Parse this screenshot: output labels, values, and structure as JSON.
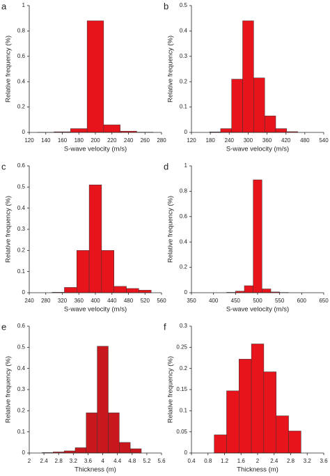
{
  "chart_data": [
    {
      "type": "histogram",
      "title": "a",
      "x_label": "S-wave velocity (m/s)",
      "y_label": "Relative frequency (%)",
      "color": "#e8141c",
      "bins": [
        130,
        150,
        170,
        190,
        210,
        230,
        250,
        270
      ],
      "values": [
        0.001,
        0.005,
        0.03,
        0.88,
        0.06,
        0.01,
        0.002
      ],
      "xlim": [
        120,
        280
      ],
      "xticks": [
        120,
        140,
        160,
        180,
        200,
        220,
        240,
        260,
        280
      ],
      "ylim": [
        0,
        1
      ],
      "yticks": [
        0,
        0.2,
        0.4,
        0.6,
        0.8,
        1
      ]
    },
    {
      "type": "histogram",
      "title": "b",
      "x_label": "S-wave velocity (m/s)",
      "y_label": "Relative frequency (%)",
      "color": "#e8141c",
      "bins": [
        177.5,
        212.5,
        247.5,
        282.5,
        317.5,
        352.5,
        387.5,
        422.5,
        457.5
      ],
      "values": [
        0.002,
        0.015,
        0.21,
        0.44,
        0.215,
        0.065,
        0.015,
        0.003
      ],
      "xlim": [
        120,
        540
      ],
      "xticks": [
        120,
        180,
        240,
        300,
        360,
        420,
        480,
        540
      ],
      "ylim": [
        0,
        0.5
      ],
      "yticks": [
        0,
        0.1,
        0.2,
        0.3,
        0.4,
        0.5
      ]
    },
    {
      "type": "histogram",
      "title": "c",
      "x_label": "S-wave velocity (m/s)",
      "y_label": "Relative frequency (%)",
      "color": "#e8141c",
      "bins": [
        295,
        325,
        355,
        385,
        415,
        445,
        475,
        505,
        535
      ],
      "values": [
        0.002,
        0.025,
        0.2,
        0.51,
        0.2,
        0.03,
        0.02,
        0.012
      ],
      "xlim": [
        240,
        560
      ],
      "xticks": [
        240,
        280,
        320,
        360,
        400,
        440,
        480,
        520,
        560
      ],
      "ylim": [
        0,
        0.6
      ],
      "yticks": [
        0,
        0.1,
        0.2,
        0.3,
        0.4,
        0.5,
        0.6
      ]
    },
    {
      "type": "histogram",
      "title": "d",
      "x_label": "S-wave velocity (m/s)",
      "y_label": "Relative frequency (%)",
      "color": "#e8141c",
      "bins": [
        430,
        450,
        470,
        490,
        510,
        530,
        550,
        570
      ],
      "values": [
        0.003,
        0.012,
        0.055,
        0.89,
        0.03,
        0.006,
        0.002
      ],
      "xlim": [
        350,
        650
      ],
      "xticks": [
        350,
        400,
        450,
        500,
        550,
        600,
        650
      ],
      "ylim": [
        0,
        1
      ],
      "yticks": [
        0,
        0.2,
        0.4,
        0.6,
        0.8,
        1
      ]
    },
    {
      "type": "histogram",
      "title": "e",
      "x_label": "Thickness (m)",
      "y_label": "Relative frequency (%)",
      "color": "#c8181e",
      "bins": [
        2.35,
        2.65,
        2.95,
        3.25,
        3.55,
        3.85,
        4.15,
        4.45,
        4.75,
        5.05
      ],
      "values": [
        0.002,
        0.005,
        0.01,
        0.025,
        0.19,
        0.505,
        0.19,
        0.05,
        0.02
      ],
      "xlim": [
        2,
        5.6
      ],
      "xticks": [
        2,
        2.4,
        2.8,
        3.2,
        3.6,
        4,
        4.4,
        4.8,
        5.2,
        5.6
      ],
      "ylim": [
        0,
        0.6
      ],
      "yticks": [
        0,
        0.1,
        0.2,
        0.3,
        0.4,
        0.5,
        0.6
      ]
    },
    {
      "type": "histogram",
      "title": "f",
      "x_label": "Thickness (m)",
      "y_label": "Relative frequency (%)",
      "color": "#e8141c",
      "bins": [
        0.95,
        1.25,
        1.55,
        1.85,
        2.15,
        2.45,
        2.75,
        3.05
      ],
      "values": [
        0.043,
        0.147,
        0.222,
        0.258,
        0.192,
        0.088,
        0.052
      ],
      "xlim": [
        0.4,
        3.6
      ],
      "xticks": [
        0.4,
        0.8,
        1.2,
        1.6,
        2,
        2.4,
        2.8,
        3.2,
        3.6
      ],
      "ylim": [
        0,
        0.3
      ],
      "yticks": [
        0,
        0.05,
        0.1,
        0.15,
        0.2,
        0.25,
        0.3
      ]
    }
  ]
}
